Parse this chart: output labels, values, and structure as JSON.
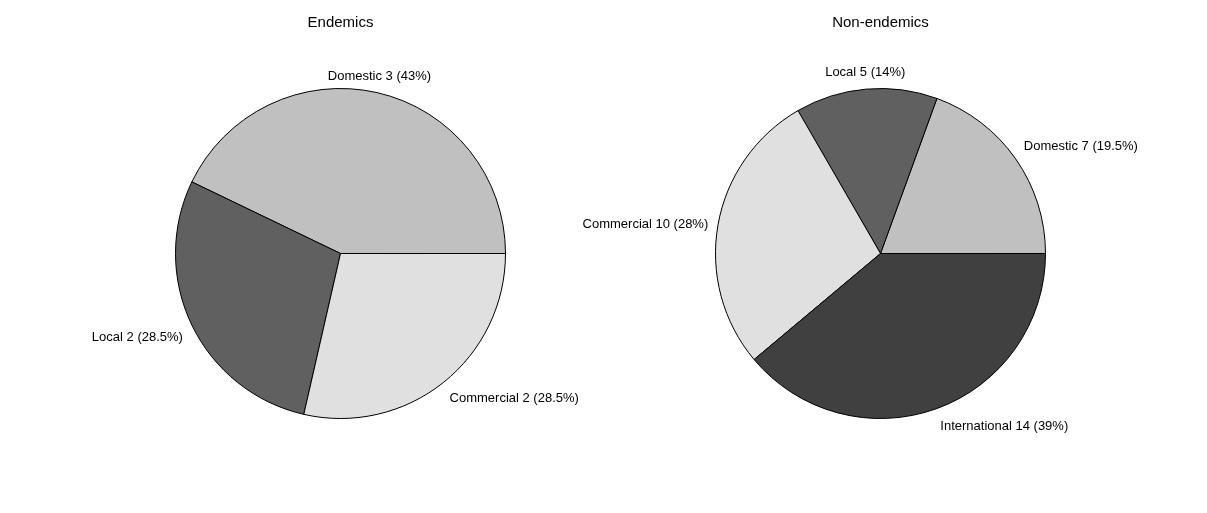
{
  "chart_data": [
    {
      "type": "pie",
      "title": "Endemics",
      "categories": [
        "Domestic 3 (43%)",
        "Local 2 (28.5%)",
        "Commercial 2 (28.5%)"
      ],
      "values": [
        3,
        2,
        2
      ],
      "colors": [
        "#c0c0c0",
        "#606060",
        "#e0e0e0"
      ]
    },
    {
      "type": "pie",
      "title": "Non-endemics",
      "categories": [
        "Domestic 7 (19.5%)",
        "Local 5 (14%)",
        "Commercial 10 (28%)",
        "International 14 (39%)"
      ],
      "values": [
        7,
        5,
        10,
        14
      ],
      "colors": [
        "#c0c0c0",
        "#606060",
        "#e0e0e0",
        "#404040"
      ]
    }
  ]
}
